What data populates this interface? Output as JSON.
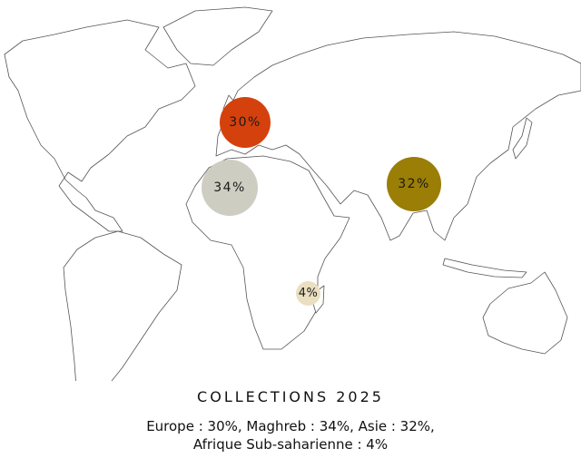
{
  "title": "COLLECTIONS 2025",
  "caption_line1": "Europe : 30%, Maghreb : 34%, Asie : 32%,",
  "caption_line2": "Afrique Sub-saharienne : 4%",
  "regions": [
    {
      "name": "Europe",
      "label": "30%",
      "value": 30,
      "color": "#D4410C"
    },
    {
      "name": "Maghreb",
      "label": "34%",
      "value": 34,
      "color": "#CDCDC2"
    },
    {
      "name": "Asie",
      "label": "32%",
      "value": 32,
      "color": "#9A7E06"
    },
    {
      "name": "Afrique Sub-saharienne",
      "label": "4%",
      "value": 4,
      "color": "#EADFC0"
    }
  ]
}
